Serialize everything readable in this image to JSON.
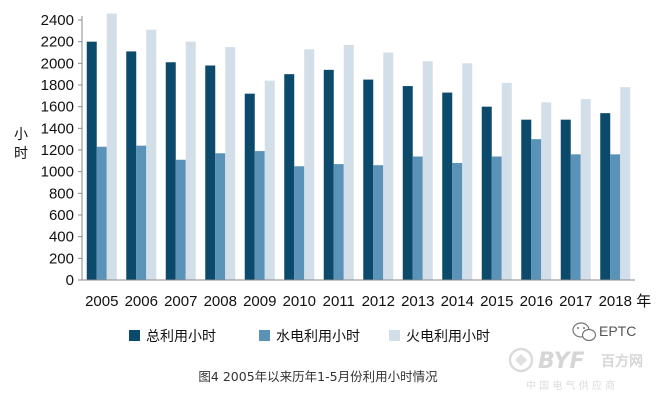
{
  "chart_data": {
    "type": "bar",
    "categories": [
      "2005",
      "2006",
      "2007",
      "2008",
      "2009",
      "2010",
      "2011",
      "2012",
      "2013",
      "2014",
      "2015",
      "2016",
      "2017",
      "2018"
    ],
    "x_unit": "年",
    "ylabel": "小时",
    "ylim": [
      0,
      2400
    ],
    "yticks": [
      0,
      200,
      400,
      600,
      800,
      1000,
      1200,
      1400,
      1600,
      1800,
      2000,
      2200,
      2400
    ],
    "grid": false,
    "legend_position": "bottom",
    "series": [
      {
        "name": "总利用小时",
        "color": "#0b4a6a",
        "values": [
          2200,
          2110,
          2010,
          1980,
          1720,
          1900,
          1940,
          1850,
          1790,
          1730,
          1600,
          1480,
          1480,
          1540
        ]
      },
      {
        "name": "水电利用小时",
        "color": "#5a92b8",
        "values": [
          1230,
          1240,
          1110,
          1170,
          1190,
          1050,
          1070,
          1060,
          1140,
          1080,
          1140,
          1300,
          1160,
          1160
        ]
      },
      {
        "name": "火电利用小时",
        "color": "#d3dfe8",
        "values": [
          2460,
          2310,
          2200,
          2150,
          1840,
          2130,
          2170,
          2100,
          2020,
          2000,
          1820,
          1640,
          1670,
          1780
        ]
      }
    ],
    "caption": "图4   2005年以来历年1-5月份利用小时情况"
  },
  "watermark": {
    "wechat_text": "EPTC",
    "brand_text": "BYF",
    "brand_cn": "百方网",
    "footer_cn": "中 国 电 气 供 应 商"
  }
}
